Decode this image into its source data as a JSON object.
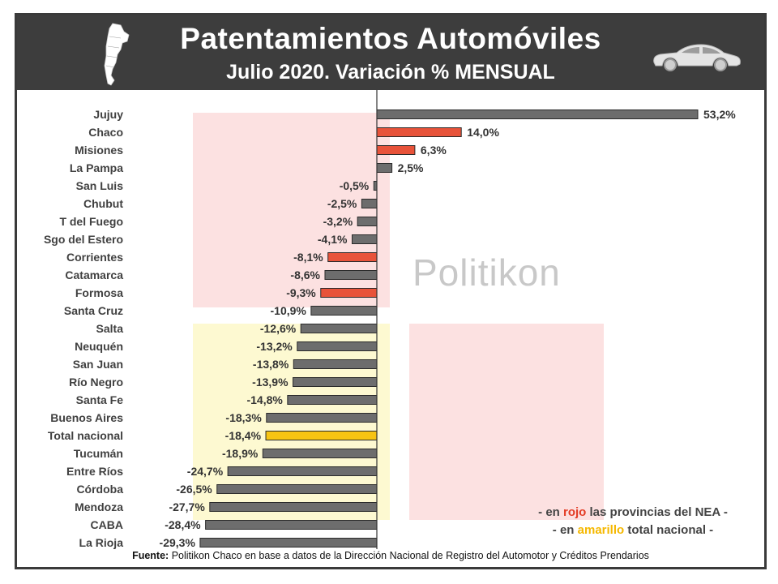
{
  "header": {
    "title": "Patentamientos Automóviles",
    "subtitle": "Julio 2020. Variación % MENSUAL"
  },
  "watermark": "Politikon",
  "legend_note": {
    "line1_prefix": "- en ",
    "line1_red_word": "rojo",
    "line1_suffix": " las provincias del NEA -",
    "line2_prefix": "- en ",
    "line2_yellow_word": "amarillo",
    "line2_suffix": " total nacional -"
  },
  "source": {
    "label": "Fuente:",
    "text": " Politikon Chaco en base a datos de la Dirección Nacional de Registro del Automotor y Créditos Prendarios"
  },
  "colors": {
    "gray": "#6d6d6d",
    "red": "#e8533a",
    "yellow": "#f7c413",
    "header": "#3d3d3d"
  },
  "icons": [
    "argentina-map-icon",
    "car-icon"
  ],
  "chart_data": {
    "type": "bar",
    "orientation": "horizontal",
    "categories": [
      "Jujuy",
      "Chaco",
      "Misiones",
      "La Pampa",
      "San Luis",
      "Chubut",
      "T del Fuego",
      "Sgo del Estero",
      "Corrientes",
      "Catamarca",
      "Formosa",
      "Santa Cruz",
      "Salta",
      "Neuquén",
      "San Juan",
      "Río Negro",
      "Santa Fe",
      "Buenos Aires",
      "Total nacional",
      "Tucumán",
      "Entre Ríos",
      "Córdoba",
      "Mendoza",
      "CABA",
      "La Rioja"
    ],
    "values": [
      53.2,
      14.0,
      6.3,
      2.5,
      -0.5,
      -2.5,
      -3.2,
      -4.1,
      -8.1,
      -8.6,
      -9.3,
      -10.9,
      -12.6,
      -13.2,
      -13.8,
      -13.9,
      -14.8,
      -18.3,
      -18.4,
      -18.9,
      -24.7,
      -26.5,
      -27.7,
      -28.4,
      -29.3
    ],
    "labels": [
      "53,2%",
      "14,0%",
      "6,3%",
      "2,5%",
      "-0,5%",
      "-2,5%",
      "-3,2%",
      "-4,1%",
      "-8,1%",
      "-8,6%",
      "-9,3%",
      "-10,9%",
      "-12,6%",
      "-13,2%",
      "-13,8%",
      "-13,9%",
      "-14,8%",
      "-18,3%",
      "-18,4%",
      "-18,9%",
      "-24,7%",
      "-26,5%",
      "-27,7%",
      "-28,4%",
      "-29,3%"
    ],
    "highlight": [
      "gray",
      "red",
      "red",
      "gray",
      "gray",
      "gray",
      "gray",
      "gray",
      "red",
      "gray",
      "red",
      "gray",
      "gray",
      "gray",
      "gray",
      "gray",
      "gray",
      "gray",
      "yellow",
      "gray",
      "gray",
      "gray",
      "gray",
      "gray",
      "gray"
    ],
    "xlim": [
      -31,
      56
    ],
    "grid": false
  }
}
